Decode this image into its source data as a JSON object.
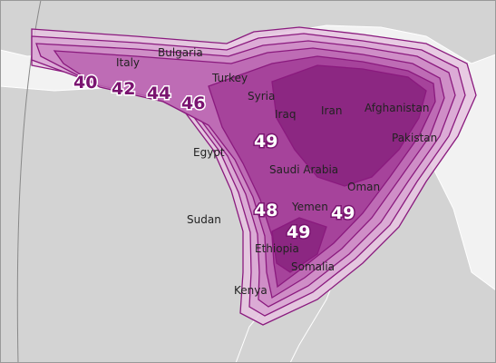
{
  "countries": [
    "Italy",
    "Bulgaria",
    "Turkey",
    "Syria",
    "Iraq",
    "Iran",
    "Afghanistan",
    "Pakistan",
    "Egypt",
    "Saudi Arabia",
    "Oman",
    "Yemen",
    "Sudan",
    "Ethiopia",
    "Somalia",
    "Kenya"
  ],
  "contour_labels": [
    40,
    42,
    44,
    46,
    49,
    48,
    49,
    49
  ]
}
